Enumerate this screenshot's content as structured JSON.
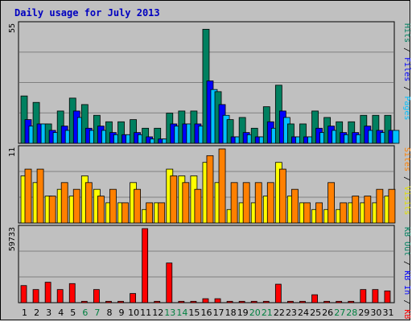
{
  "chart_data": {
    "type": "bar",
    "title": "Daily usage for July 2013",
    "x_labels": [
      "1",
      "2",
      "3",
      "4",
      "5",
      "6",
      "7",
      "8",
      "9",
      "10",
      "11",
      "12",
      "13",
      "14",
      "15",
      "16",
      "17",
      "18",
      "19",
      "20",
      "21",
      "22",
      "23",
      "24",
      "25",
      "26",
      "27",
      "28",
      "29",
      "30",
      "31"
    ],
    "weekend_days": [
      6,
      7,
      13,
      14,
      20,
      21,
      27,
      28
    ],
    "label_colors": {
      "weekday": "#000000",
      "weekend": "#008040"
    },
    "panels": [
      {
        "name": "hits",
        "ymax_label": "55",
        "ymax": 55,
        "side_label": [
          {
            "text": "Pages",
            "color": "#00c0ff"
          },
          {
            "text": " / ",
            "color": "#000000"
          },
          {
            "text": "Files",
            "color": "#0000ff"
          },
          {
            "text": " / ",
            "color": "#000000"
          },
          {
            "text": "Hits",
            "color": "#008060"
          }
        ],
        "series": [
          {
            "name": "Hits",
            "color": "#008060",
            "values": [
              22,
              19,
              9,
              15,
              21,
              18,
              13,
              10,
              10,
              11,
              7,
              7,
              14,
              15,
              15,
              53,
              24,
              11,
              12,
              7,
              17,
              27,
              9,
              9,
              15,
              12,
              10,
              10,
              13,
              13,
              13
            ]
          },
          {
            "name": "Files",
            "color": "#0000ff",
            "values": [
              11,
              9,
              6,
              8,
              15,
              7,
              8,
              5,
              4,
              5,
              3,
              2,
              9,
              9,
              9,
              29,
              18,
              3,
              5,
              3,
              10,
              15,
              3,
              3,
              7,
              8,
              5,
              5,
              8,
              6,
              6
            ]
          },
          {
            "name": "Pages",
            "color": "#00c0ff",
            "values": [
              8,
              9,
              5,
              6,
              12,
              6,
              6,
              4,
              4,
              4,
              2,
              2,
              8,
              9,
              8,
              25,
              13,
              3,
              4,
              3,
              7,
              12,
              3,
              3,
              5,
              6,
              4,
              4,
              6,
              5,
              6
            ]
          }
        ]
      },
      {
        "name": "visits",
        "ymax_label": "11",
        "ymax": 11,
        "side_label": [
          {
            "text": "Visits",
            "color": "#e0e000"
          },
          {
            "text": " / ",
            "color": "#000000"
          },
          {
            "text": "Sites",
            "color": "#ff8000"
          }
        ],
        "series": [
          {
            "name": "Visits",
            "color": "#ffff00",
            "values": [
              7,
              6,
              4,
              5,
              4,
              7,
              5,
              3,
              3,
              6,
              2,
              3,
              8,
              7,
              7,
              9,
              6,
              2,
              3,
              3,
              4,
              9,
              4,
              3,
              2,
              2,
              2,
              3,
              3,
              3,
              4
            ]
          },
          {
            "name": "Sites",
            "color": "#ff8000",
            "values": [
              8,
              8,
              4,
              6,
              5,
              6,
              4,
              5,
              3,
              5,
              3,
              3,
              7,
              6,
              5,
              10,
              11,
              6,
              6,
              6,
              6,
              8,
              5,
              3,
              3,
              6,
              3,
              4,
              4,
              5,
              5
            ]
          }
        ]
      },
      {
        "name": "kbytes",
        "ymax_label": "59733",
        "ymax": 59733,
        "side_label": [
          {
            "text": "KB F",
            "color": "#ff0000"
          },
          {
            "text": " / ",
            "color": "#000000"
          },
          {
            "text": "KB In",
            "color": "#0000ff"
          },
          {
            "text": " / ",
            "color": "#000000"
          },
          {
            "text": "KB Out",
            "color": "#008060"
          }
        ],
        "series": [
          {
            "name": "KB F",
            "color": "#ff0000",
            "values": [
              13800,
              10600,
              16500,
              10600,
              15400,
              1100,
              10600,
              1100,
              1100,
              7400,
              59733,
              1100,
              32000,
              1100,
              1100,
              3200,
              3200,
              1100,
              1100,
              1100,
              1100,
              14900,
              1100,
              1100,
              6400,
              1100,
              1100,
              1100,
              10600,
              10600,
              9500
            ]
          }
        ]
      }
    ]
  }
}
